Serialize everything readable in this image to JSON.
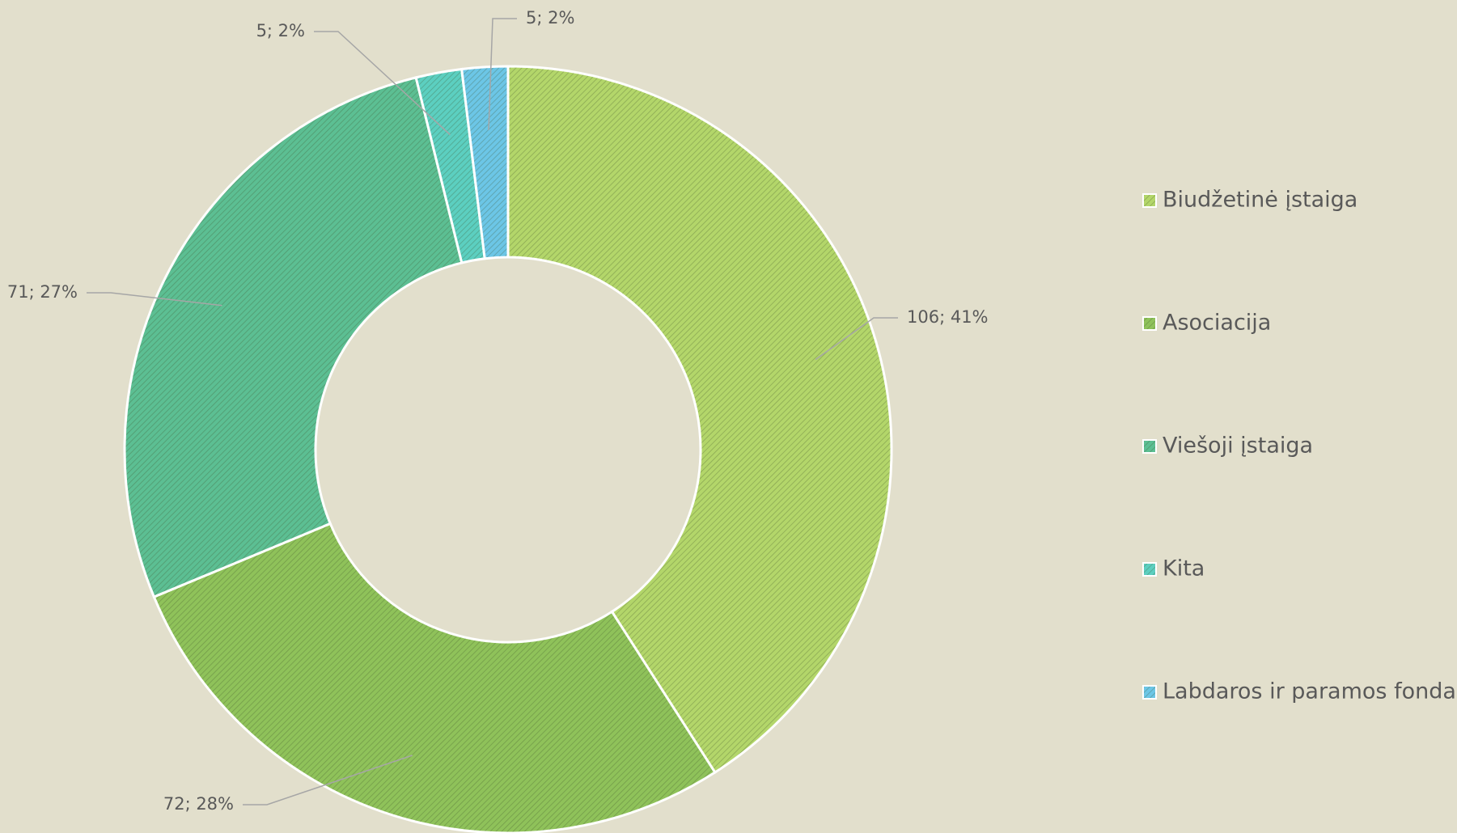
{
  "chart_data": {
    "type": "donut",
    "categories": [
      "Biudžetinė įstaiga",
      "Asociacija",
      "Viešoji įstaiga",
      "Kita",
      "Labdaros ir paramos fondas"
    ],
    "values": [
      106,
      72,
      71,
      5,
      5
    ],
    "value_labels": [
      "106; 41%",
      "72; 28%",
      "71; 27%",
      "5; 2%",
      "5; 2%"
    ],
    "colors": [
      "#b3d66a",
      "#8fc25a",
      "#5cbf93",
      "#5ccfc0",
      "#6cc6e6"
    ],
    "legend": "right"
  }
}
